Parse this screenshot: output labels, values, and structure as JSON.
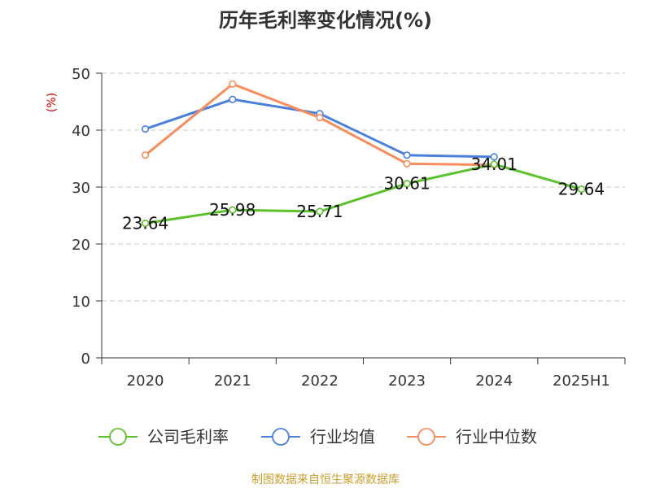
{
  "chart_data": {
    "type": "line",
    "title": "历年毛利率变化情况(%)",
    "xlabel": "",
    "ylabel": "(%)",
    "categories": [
      "2020",
      "2021",
      "2022",
      "2023",
      "2024",
      "2025H1"
    ],
    "ylim": [
      0,
      50
    ],
    "yticks": [
      "0",
      "10",
      "20",
      "30",
      "40",
      "50"
    ],
    "grid": true,
    "legend_position": "bottom",
    "series": [
      {
        "name": "公司毛利率",
        "color": "#5cc12b",
        "values": [
          23.64,
          25.98,
          25.71,
          30.61,
          34.01,
          29.64
        ],
        "labels": [
          "23.64",
          "25.98",
          "25.71",
          "30.61",
          "34.01",
          "29.64"
        ],
        "show_labels": true
      },
      {
        "name": "行业均值",
        "color": "#4a7fdc",
        "values": [
          40.2,
          45.4,
          42.9,
          35.6,
          35.3,
          null
        ],
        "show_labels": false
      },
      {
        "name": "行业中位数",
        "color": "#f58d5e",
        "values": [
          35.6,
          48.1,
          42.2,
          34.1,
          33.9,
          null
        ],
        "show_labels": false
      }
    ],
    "source": "制图数据来自恒生聚源数据库"
  }
}
